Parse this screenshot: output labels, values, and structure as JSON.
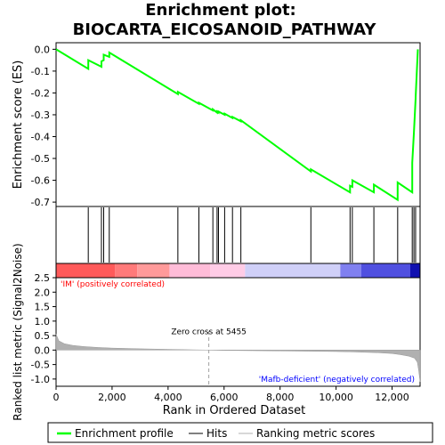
{
  "chart_data": {
    "type": "line",
    "title_line1": "Enrichment plot:",
    "title_line2": "BIOCARTA_EICOSANOID_PATHWAY",
    "es_ylabel": "Enrichment score (ES)",
    "metric_ylabel": "Ranked list metric (Signal2Noise)",
    "xlabel": "Rank in Ordered Dataset",
    "xlim": [
      0,
      13000
    ],
    "es_ylim": [
      -0.72,
      0.03
    ],
    "metric_ylim": [
      -1.25,
      2.5
    ],
    "x_ticks": [
      0,
      2000,
      4000,
      6000,
      8000,
      10000,
      12000
    ],
    "x_tick_labels": [
      "0",
      "2,000",
      "4,000",
      "6,000",
      "8,000",
      "10,000",
      "12,000"
    ],
    "es_ticks": [
      0.0,
      -0.1,
      -0.2,
      -0.3,
      -0.4,
      -0.5,
      -0.6,
      -0.7
    ],
    "es_tick_labels": [
      "0.0",
      "-0.1",
      "-0.2",
      "-0.3",
      "-0.4",
      "-0.5",
      "-0.6",
      "-0.7"
    ],
    "metric_ticks": [
      2.5,
      2.0,
      1.5,
      1.0,
      0.5,
      0.0,
      -0.5,
      -1.0
    ],
    "metric_tick_labels": [
      "2.5",
      "2.0",
      "1.5",
      "1.0",
      "0.5",
      "0.0",
      "-0.5",
      "-1.0"
    ],
    "hits": [
      1150,
      1620,
      1700,
      1900,
      4350,
      5100,
      5600,
      5750,
      5800,
      6020,
      6300,
      6600,
      9100,
      10500,
      10580,
      11350,
      12200,
      12720,
      12780,
      12840
    ],
    "es_curve": {
      "x": [
        0,
        1150,
        1150,
        1620,
        1620,
        1700,
        1700,
        1900,
        1900,
        4350,
        4350,
        5100,
        5100,
        5600,
        5600,
        5750,
        5750,
        5800,
        5800,
        6020,
        6020,
        6300,
        6300,
        6600,
        6600,
        9100,
        9100,
        10500,
        10500,
        10580,
        10580,
        11350,
        11350,
        12200,
        12200,
        12720,
        12720,
        12780,
        12780,
        12840,
        12840,
        12920
      ],
      "y": [
        0.0,
        -0.09,
        -0.05,
        -0.08,
        -0.055,
        -0.05,
        -0.025,
        -0.035,
        -0.015,
        -0.205,
        -0.195,
        -0.25,
        -0.245,
        -0.28,
        -0.275,
        -0.29,
        -0.285,
        -0.29,
        -0.285,
        -0.3,
        -0.295,
        -0.315,
        -0.31,
        -0.33,
        -0.325,
        -0.56,
        -0.55,
        -0.655,
        -0.625,
        -0.63,
        -0.6,
        -0.655,
        -0.62,
        -0.69,
        -0.61,
        -0.655,
        -0.52,
        -0.38,
        -0.38,
        -0.225,
        -0.22,
        0.0
      ]
    },
    "metric_curve": {
      "x": [
        0,
        100,
        300,
        600,
        1000,
        1500,
        2000,
        2500,
        3000,
        3500,
        4000,
        4500,
        5000,
        5455,
        6000,
        7000,
        8000,
        9000,
        10000,
        10500,
        11000,
        11500,
        12000,
        12300,
        12600,
        12800,
        12900,
        12950,
        13000
      ],
      "y": [
        0.55,
        0.32,
        0.22,
        0.16,
        0.12,
        0.09,
        0.07,
        0.055,
        0.045,
        0.035,
        0.025,
        0.015,
        0.008,
        0.0,
        -0.01,
        -0.02,
        -0.03,
        -0.04,
        -0.05,
        -0.06,
        -0.075,
        -0.09,
        -0.12,
        -0.16,
        -0.21,
        -0.28,
        -0.42,
        -0.7,
        -1.1
      ]
    },
    "zero_cross_label": "Zero cross at 5455",
    "zero_cross_x": 5455,
    "pos_label": "'IM' (positively correlated)",
    "neg_label": "'Mafb-deficient' (negatively correlated)",
    "colors": {
      "es_line": "#00ff00",
      "hits": "#000000",
      "metric_fill": "#b0b0b0",
      "pos_label": "#ff0000",
      "neg_label": "#0000ff"
    },
    "heat_segments": [
      {
        "to": 2100,
        "color": "#ff5a5a"
      },
      {
        "to": 2900,
        "color": "#ff7a7a"
      },
      {
        "to": 4050,
        "color": "#ff9a9a"
      },
      {
        "to": 5500,
        "color": "#ffbcd8"
      },
      {
        "to": 6750,
        "color": "#ffcce6"
      },
      {
        "to": 10150,
        "color": "#d0d0f8"
      },
      {
        "to": 10900,
        "color": "#8080f0"
      },
      {
        "to": 12650,
        "color": "#5050e0"
      },
      {
        "to": 13000,
        "color": "#1010b0"
      }
    ],
    "legend": [
      {
        "label": "Enrichment profile",
        "color": "#00ff00",
        "kind": "profile"
      },
      {
        "label": "Hits",
        "color": "#000000",
        "kind": "hits"
      },
      {
        "label": "Ranking metric scores",
        "color": "#b0b0b0",
        "kind": "metric"
      }
    ]
  }
}
